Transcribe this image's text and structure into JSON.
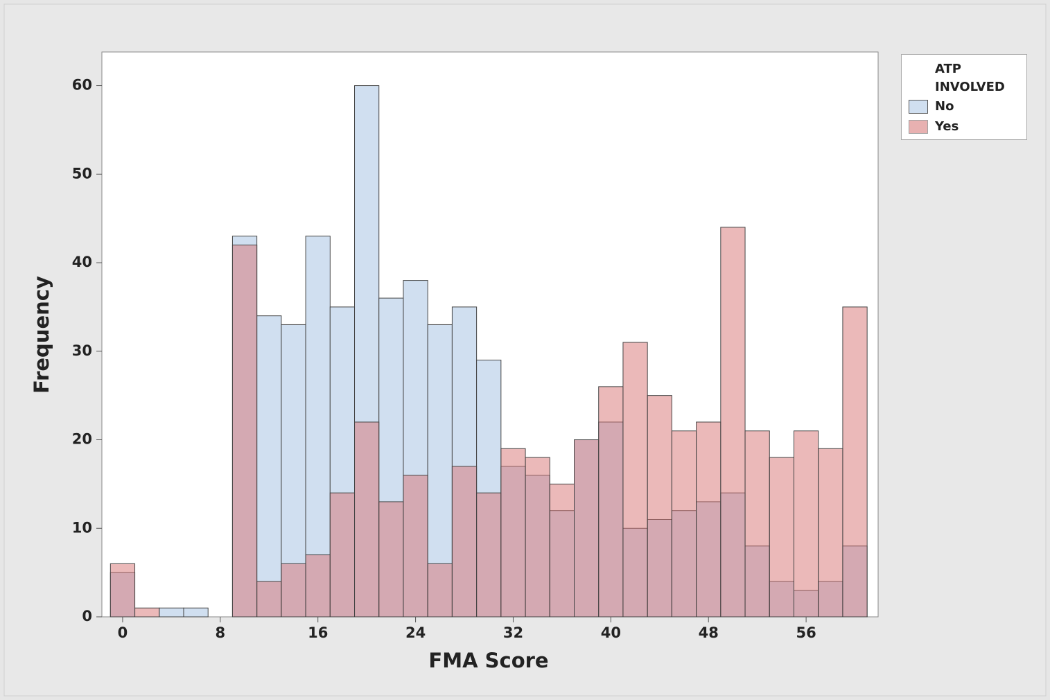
{
  "chart_data": {
    "type": "histogram",
    "x_label": "FMA Score",
    "y_label": "Frequency",
    "legend_title": "ATP INVOLVED",
    "legend_position": "right",
    "bins": [
      -1,
      1,
      3,
      5,
      7,
      9,
      11,
      13,
      15,
      17,
      19,
      21,
      23,
      25,
      27,
      29,
      31,
      33,
      35,
      37,
      39,
      41,
      43,
      45,
      47,
      49,
      51,
      53,
      55,
      57,
      59,
      61
    ],
    "series": [
      {
        "name": "No",
        "color": "#d0dff0",
        "values": [
          5,
          0,
          1,
          1,
          0,
          43,
          34,
          33,
          43,
          35,
          60,
          36,
          38,
          33,
          35,
          29,
          17,
          16,
          12,
          20,
          22,
          10,
          11,
          12,
          13,
          14,
          8,
          4,
          3,
          4,
          8
        ]
      },
      {
        "name": "Yes",
        "color": "#d77373",
        "values": [
          6,
          1,
          0,
          0,
          0,
          42,
          4,
          6,
          7,
          14,
          22,
          13,
          16,
          6,
          17,
          14,
          19,
          18,
          15,
          20,
          26,
          31,
          25,
          21,
          22,
          44,
          21,
          18,
          21,
          19,
          35
        ]
      }
    ],
    "xlim": [
      -1.7,
      61.9
    ],
    "ylim": [
      0,
      63.8
    ],
    "xticks": [
      0,
      8,
      16,
      24,
      32,
      40,
      48,
      56
    ],
    "yticks": [
      0,
      10,
      20,
      30,
      40,
      50,
      60
    ]
  }
}
